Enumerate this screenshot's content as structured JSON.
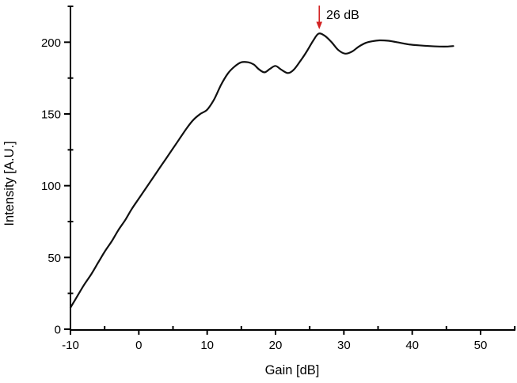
{
  "chart_data": {
    "type": "line",
    "title": "",
    "xlabel": "Gain [dB]",
    "ylabel": "Intensity [A.U.]",
    "xlim": [
      -10,
      55
    ],
    "ylim": [
      0,
      225
    ],
    "grid": false,
    "legend": "none",
    "axes_color": "#000000",
    "x_major_ticks": [
      -10,
      0,
      10,
      20,
      30,
      40,
      50
    ],
    "x_minor_ticks": [
      -5,
      5,
      15,
      25,
      35,
      45,
      55
    ],
    "y_major_ticks": [
      0,
      50,
      100,
      150,
      200
    ],
    "y_minor_ticks": [
      25,
      75,
      125,
      175,
      225
    ],
    "annotation": {
      "text": "26 dB",
      "arrow_x": 26.4,
      "arrow_color": "#d22222"
    },
    "series": [
      {
        "name": "intensity-curve",
        "color": "#111111",
        "points": [
          [
            -10,
            15
          ],
          [
            -9,
            23
          ],
          [
            -8,
            31
          ],
          [
            -7,
            38
          ],
          [
            -6,
            46
          ],
          [
            -5,
            54
          ],
          [
            -4,
            61
          ],
          [
            -3,
            69
          ],
          [
            -2,
            76
          ],
          [
            -1,
            84
          ],
          [
            0,
            91
          ],
          [
            1,
            98
          ],
          [
            2,
            105
          ],
          [
            3,
            112
          ],
          [
            4,
            119
          ],
          [
            5,
            126
          ],
          [
            6,
            133
          ],
          [
            7,
            140
          ],
          [
            8,
            146
          ],
          [
            9,
            150
          ],
          [
            10,
            153
          ],
          [
            11,
            160
          ],
          [
            12,
            170
          ],
          [
            13,
            178
          ],
          [
            14,
            183
          ],
          [
            15,
            186
          ],
          [
            16,
            186
          ],
          [
            16.8,
            184.5
          ],
          [
            17.6,
            181
          ],
          [
            18.4,
            179
          ],
          [
            19.2,
            181.5
          ],
          [
            20,
            183.5
          ],
          [
            20.8,
            181
          ],
          [
            21.8,
            178.5
          ],
          [
            22.6,
            180.5
          ],
          [
            23.5,
            186
          ],
          [
            24.5,
            193
          ],
          [
            25.5,
            201
          ],
          [
            26.3,
            206
          ],
          [
            27.2,
            204.5
          ],
          [
            28.2,
            200
          ],
          [
            29.2,
            194.5
          ],
          [
            30.2,
            192
          ],
          [
            31.2,
            193.5
          ],
          [
            32.2,
            197
          ],
          [
            33.2,
            199.5
          ],
          [
            34.2,
            200.7
          ],
          [
            35.2,
            201.3
          ],
          [
            36.5,
            201
          ],
          [
            38,
            199.8
          ],
          [
            39.5,
            198.5
          ],
          [
            41,
            197.8
          ],
          [
            42.5,
            197.3
          ],
          [
            44,
            197
          ],
          [
            45.2,
            197
          ],
          [
            46,
            197.3
          ]
        ]
      }
    ]
  }
}
